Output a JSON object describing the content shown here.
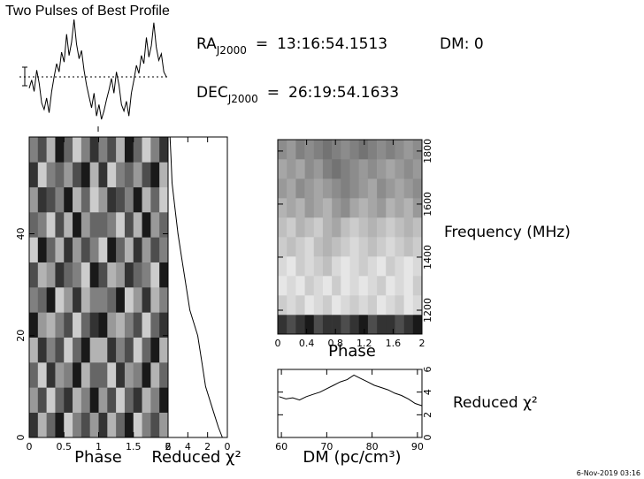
{
  "chart_data": [
    {
      "type": "line",
      "title": "Two Pulses of Best Profile",
      "values": [
        4.1,
        4.6,
        3.9,
        5.2,
        4.4,
        3.2,
        2.8,
        3.5,
        2.6,
        3.9,
        4.8,
        5.6,
        5.1,
        6.3,
        5.7,
        7.4,
        6.1,
        6.9,
        8.3,
        6.8,
        5.9,
        6.4,
        5.2,
        4.3,
        3.6,
        2.9,
        3.8,
        2.4,
        3.1,
        2.2,
        2.7,
        3.4,
        4.0,
        4.7,
        3.8,
        5.1,
        4.3,
        3.1,
        2.7,
        3.3,
        2.4,
        3.8,
        4.6,
        5.5,
        5.0,
        6.1,
        5.6,
        7.2,
        6.0,
        6.7,
        8.1,
        6.6,
        5.8,
        6.2,
        5.1,
        4.8
      ],
      "color": "#000000"
    },
    {
      "type": "heatmap",
      "xlabel": "Phase",
      "xlim": [
        0,
        2
      ],
      "xticks": [
        0,
        0.5,
        1,
        1.5,
        2
      ],
      "ylim": [
        0,
        59
      ],
      "yticks": [
        0,
        20,
        40
      ],
      "yaxis_side": "left",
      "values": [
        [
          0.8,
          0.3,
          0.6,
          0.9,
          0.2,
          0.5,
          0.7,
          0.4,
          0.8,
          0.3,
          0.6,
          0.9,
          0.2,
          0.5,
          0.7,
          0.4
        ],
        [
          0.4,
          0.7,
          0.2,
          0.6,
          0.8,
          0.3,
          0.5,
          0.9,
          0.4,
          0.7,
          0.2,
          0.6,
          0.8,
          0.3,
          0.5,
          0.9
        ],
        [
          0.6,
          0.2,
          0.8,
          0.4,
          0.5,
          0.9,
          0.3,
          0.6,
          0.6,
          0.2,
          0.8,
          0.4,
          0.5,
          0.9,
          0.3,
          0.6
        ],
        [
          0.3,
          0.8,
          0.5,
          0.7,
          0.2,
          0.6,
          0.9,
          0.3,
          0.3,
          0.8,
          0.5,
          0.7,
          0.2,
          0.6,
          0.9,
          0.3
        ],
        [
          0.9,
          0.4,
          0.3,
          0.5,
          0.7,
          0.2,
          0.6,
          0.8,
          0.9,
          0.4,
          0.3,
          0.5,
          0.7,
          0.2,
          0.6,
          0.8
        ],
        [
          0.5,
          0.6,
          0.9,
          0.2,
          0.4,
          0.8,
          0.3,
          0.5,
          0.5,
          0.6,
          0.9,
          0.2,
          0.4,
          0.8,
          0.3,
          0.5
        ],
        [
          0.7,
          0.3,
          0.4,
          0.8,
          0.6,
          0.5,
          0.2,
          0.9,
          0.7,
          0.3,
          0.4,
          0.8,
          0.6,
          0.5,
          0.2,
          0.9
        ],
        [
          0.2,
          0.9,
          0.6,
          0.3,
          0.8,
          0.4,
          0.7,
          0.5,
          0.2,
          0.9,
          0.6,
          0.3,
          0.8,
          0.4,
          0.7,
          0.5
        ],
        [
          0.6,
          0.5,
          0.2,
          0.7,
          0.3,
          0.9,
          0.4,
          0.6,
          0.6,
          0.5,
          0.2,
          0.7,
          0.3,
          0.9,
          0.4,
          0.6
        ],
        [
          0.4,
          0.8,
          0.7,
          0.5,
          0.9,
          0.3,
          0.6,
          0.2,
          0.4,
          0.8,
          0.7,
          0.5,
          0.9,
          0.3,
          0.6,
          0.2
        ],
        [
          0.8,
          0.2,
          0.5,
          0.6,
          0.4,
          0.7,
          0.9,
          0.3,
          0.8,
          0.2,
          0.5,
          0.6,
          0.4,
          0.7,
          0.9,
          0.3
        ],
        [
          0.5,
          0.7,
          0.3,
          0.9,
          0.6,
          0.2,
          0.5,
          0.8,
          0.5,
          0.7,
          0.3,
          0.9,
          0.6,
          0.2,
          0.5,
          0.8
        ]
      ]
    },
    {
      "type": "line",
      "xlabel": "Reduced χ²",
      "xlim": [
        6,
        0
      ],
      "xticks": [
        6,
        4,
        2,
        0
      ],
      "ylim": [
        0,
        59
      ],
      "y": [
        59,
        55,
        50,
        45,
        40,
        35,
        30,
        25,
        20,
        15,
        10,
        5,
        2,
        0
      ],
      "values": [
        5.8,
        5.7,
        5.6,
        5.3,
        5.0,
        4.6,
        4.2,
        3.8,
        3.0,
        2.6,
        2.2,
        1.4,
        0.9,
        0.5
      ],
      "color": "#000000"
    },
    {
      "type": "heatmap",
      "xlabel": "Phase",
      "ylabel": "Frequency (MHz)",
      "xlim": [
        0,
        2
      ],
      "xticks": [
        0,
        0.4,
        0.8,
        1.2,
        1.6,
        2
      ],
      "ylim": [
        1110,
        1843
      ],
      "yticks": [
        1200,
        1400,
        1600,
        1800
      ],
      "yaxis_side": "right",
      "values": [
        [
          0.8,
          0.7,
          0.8,
          0.9,
          0.7,
          0.8,
          0.8,
          0.7,
          0.8,
          0.9,
          0.7,
          0.8,
          0.8,
          0.7,
          0.8,
          0.9
        ],
        [
          0.2,
          0.15,
          0.2,
          0.1,
          0.15,
          0.2,
          0.1,
          0.15,
          0.2,
          0.15,
          0.2,
          0.1,
          0.15,
          0.2,
          0.1,
          0.15
        ],
        [
          0.1,
          0.15,
          0.1,
          0.2,
          0.15,
          0.1,
          0.2,
          0.1,
          0.15,
          0.1,
          0.15,
          0.2,
          0.1,
          0.15,
          0.1,
          0.2
        ],
        [
          0.15,
          0.1,
          0.2,
          0.15,
          0.2,
          0.25,
          0.15,
          0.1,
          0.15,
          0.2,
          0.15,
          0.1,
          0.2,
          0.15,
          0.1,
          0.15
        ],
        [
          0.2,
          0.25,
          0.2,
          0.15,
          0.25,
          0.3,
          0.25,
          0.2,
          0.15,
          0.2,
          0.25,
          0.2,
          0.15,
          0.2,
          0.25,
          0.2
        ],
        [
          0.25,
          0.2,
          0.3,
          0.25,
          0.2,
          0.3,
          0.35,
          0.25,
          0.2,
          0.25,
          0.3,
          0.25,
          0.2,
          0.25,
          0.3,
          0.25
        ],
        [
          0.3,
          0.35,
          0.3,
          0.4,
          0.35,
          0.3,
          0.4,
          0.45,
          0.35,
          0.3,
          0.35,
          0.4,
          0.3,
          0.35,
          0.3,
          0.4
        ],
        [
          0.4,
          0.35,
          0.45,
          0.4,
          0.35,
          0.4,
          0.45,
          0.5,
          0.45,
          0.4,
          0.35,
          0.45,
          0.4,
          0.35,
          0.4,
          0.45
        ],
        [
          0.35,
          0.4,
          0.35,
          0.45,
          0.4,
          0.5,
          0.55,
          0.5,
          0.45,
          0.4,
          0.45,
          0.4,
          0.35,
          0.4,
          0.45,
          0.4
        ],
        [
          0.45,
          0.4,
          0.5,
          0.45,
          0.5,
          0.55,
          0.5,
          0.45,
          0.5,
          0.55,
          0.5,
          0.45,
          0.5,
          0.45,
          0.4,
          0.45
        ]
      ]
    },
    {
      "type": "line",
      "xlabel": "DM (pc/cm³)",
      "ylabel": "Reduced χ²",
      "xlim": [
        59.2,
        91
      ],
      "xticks": [
        60,
        70,
        80,
        90
      ],
      "ylim": [
        0,
        6
      ],
      "yticks": [
        0,
        2,
        4,
        6
      ],
      "yaxis_side": "right",
      "x": [
        59.5,
        61,
        62.5,
        64,
        65.5,
        67,
        68.5,
        70,
        71.5,
        73,
        74.5,
        76,
        77.5,
        79,
        80.5,
        82,
        83.5,
        85,
        86.5,
        88,
        89.5,
        91
      ],
      "values": [
        3.6,
        3.4,
        3.5,
        3.3,
        3.6,
        3.8,
        4.0,
        4.3,
        4.6,
        4.9,
        5.1,
        5.5,
        5.2,
        4.9,
        4.6,
        4.4,
        4.2,
        3.9,
        3.7,
        3.4,
        3.0,
        2.8
      ],
      "color": "#000000"
    }
  ],
  "info": {
    "ra_label": "RA",
    "ra_sub": "J2000",
    "equals": "=",
    "ra_value": "13:16:54.1513",
    "dm": "DM: 0",
    "dec_label": "DEC",
    "dec_sub": "J2000",
    "dec_value": "26:19:54.1633",
    "timestamp": "6-Nov-2019 03:16"
  }
}
